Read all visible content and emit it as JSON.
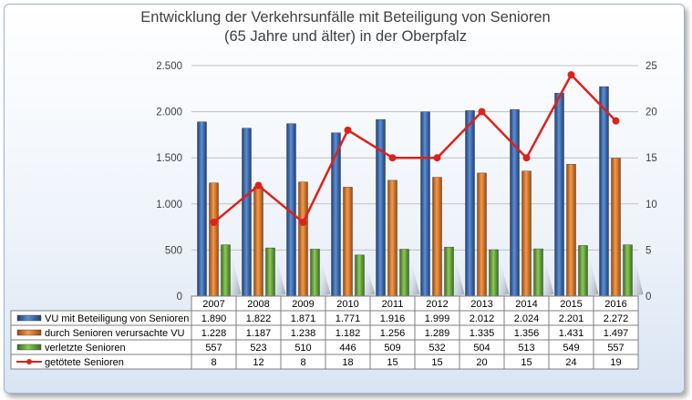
{
  "chart_data": {
    "type": "bar",
    "title": [
      "Entwicklung der Verkehrsunfälle mit Beteiligung von Senioren",
      "(65 Jahre und älter) in der Oberpfalz"
    ],
    "categories": [
      "2007",
      "2008",
      "2009",
      "2010",
      "2011",
      "2012",
      "2013",
      "2014",
      "2015",
      "2016"
    ],
    "y_left": {
      "range": [
        0,
        2500
      ],
      "ticks": [
        "0",
        "500",
        "1.000",
        "1.500",
        "2.000",
        "2.500"
      ],
      "tick_values": [
        0,
        500,
        1000,
        1500,
        2000,
        2500
      ]
    },
    "y_right": {
      "range": [
        0,
        25
      ],
      "ticks": [
        "0",
        "5",
        "10",
        "15",
        "20",
        "25"
      ],
      "tick_values": [
        0,
        5,
        10,
        15,
        20,
        25
      ]
    },
    "series": [
      {
        "name": "VU mit Beteiligung von Senioren",
        "type": "bar",
        "axis": "left",
        "color": "#3f6fb5",
        "values": [
          1890,
          1822,
          1871,
          1771,
          1916,
          1999,
          2012,
          2024,
          2201,
          2272
        ],
        "labels": [
          "1.890",
          "1.822",
          "1.871",
          "1.771",
          "1.916",
          "1.999",
          "2.012",
          "2.024",
          "2.201",
          "2.272"
        ]
      },
      {
        "name": "durch Senioren verursachte VU",
        "type": "bar",
        "axis": "left",
        "color": "#e07a2e",
        "values": [
          1228,
          1187,
          1238,
          1182,
          1256,
          1289,
          1335,
          1356,
          1431,
          1497
        ],
        "labels": [
          "1.228",
          "1.187",
          "1.238",
          "1.182",
          "1.256",
          "1.289",
          "1.335",
          "1.356",
          "1.431",
          "1.497"
        ]
      },
      {
        "name": "verletzte Senioren",
        "type": "bar",
        "axis": "left",
        "color": "#6fae3f",
        "values": [
          557,
          523,
          510,
          446,
          509,
          532,
          504,
          513,
          549,
          557
        ],
        "labels": [
          "557",
          "523",
          "510",
          "446",
          "509",
          "532",
          "504",
          "513",
          "549",
          "557"
        ]
      },
      {
        "name": "getötete Senioren",
        "type": "line",
        "axis": "right",
        "color": "#e0201b",
        "values": [
          8,
          12,
          8,
          18,
          15,
          15,
          20,
          15,
          24,
          19
        ],
        "labels": [
          "8",
          "12",
          "8",
          "18",
          "15",
          "15",
          "20",
          "15",
          "24",
          "19"
        ]
      }
    ],
    "grid": true,
    "legend": "data-table"
  }
}
